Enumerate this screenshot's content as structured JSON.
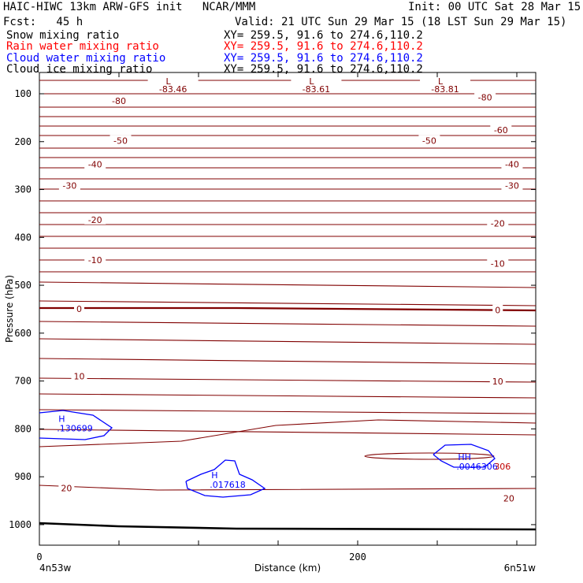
{
  "header": {
    "title": "HAIC-HIWC 13km ARW-GFS init   NCAR/MMM",
    "init": "Init: 00 UTC Sat 28 Mar 15",
    "fcst": "Fcst:   45 h",
    "valid": "Valid: 21 UTC Sun 29 Mar 15 (18 LST Sun 29 Mar 15)",
    "fields": [
      {
        "name": "Snow mixing ratio",
        "xy": "XY= 259.5, 91.6 to 274.6,110.2",
        "color": "#000000"
      },
      {
        "name": "Rain water mixing ratio",
        "xy": "XY= 259.5, 91.6 to 274.6,110.2",
        "color": "#ff0000"
      },
      {
        "name": "Cloud water mixing ratio",
        "xy": "XY= 259.5, 91.6 to 274.6,110.2",
        "color": "#0000ff"
      },
      {
        "name": "Cloud ice mixing ratio",
        "xy": "XY= 259.5, 91.6 to 274.6,110.2",
        "color": "#000000"
      }
    ]
  },
  "chart_data": {
    "type": "cross-section contour",
    "ylabel": "Pressure (hPa)",
    "xlabel": "Distance (km)",
    "y_ticks": [
      "100",
      "200",
      "300",
      "400",
      "500",
      "600",
      "700",
      "800",
      "900",
      "1000"
    ],
    "x_ticks": [
      "0",
      "200"
    ],
    "x_start_label": "4n53w",
    "x_end_label": "6n51w",
    "colors": {
      "temperature": "#800000",
      "cloud_water": "#0000ff",
      "rain": "#c00000",
      "ground": "#000000"
    },
    "isotherm_labels": [
      {
        "text": "-80",
        "x_km": 50,
        "p_hpa": 115
      },
      {
        "text": "-80",
        "x_km": 280,
        "p_hpa": 107
      },
      {
        "text": "-60",
        "x_km": 290,
        "p_hpa": 176
      },
      {
        "text": "-50",
        "x_km": 51,
        "p_hpa": 198
      },
      {
        "text": "-50",
        "x_km": 245,
        "p_hpa": 198
      },
      {
        "text": "-40",
        "x_km": 35,
        "p_hpa": 247
      },
      {
        "text": "-40",
        "x_km": 297,
        "p_hpa": 247
      },
      {
        "text": "-30",
        "x_km": 19,
        "p_hpa": 292
      },
      {
        "text": "-30",
        "x_km": 297,
        "p_hpa": 292
      },
      {
        "text": "-20",
        "x_km": 35,
        "p_hpa": 363
      },
      {
        "text": "-20",
        "x_km": 288,
        "p_hpa": 371
      },
      {
        "text": "-10",
        "x_km": 35,
        "p_hpa": 447
      },
      {
        "text": "-10",
        "x_km": 288,
        "p_hpa": 455
      },
      {
        "text": "0",
        "x_km": 25,
        "p_hpa": 549
      },
      {
        "text": "0",
        "x_km": 288,
        "p_hpa": 552
      },
      {
        "text": "10",
        "x_km": 25,
        "p_hpa": 690
      },
      {
        "text": "10",
        "x_km": 288,
        "p_hpa": 701
      },
      {
        "text": "20",
        "x_km": 17,
        "p_hpa": 924
      },
      {
        "text": "20",
        "x_km": 295,
        "p_hpa": 945
      }
    ],
    "lows": [
      {
        "mark": "L",
        "value": "-83.46",
        "x_km": 81
      },
      {
        "mark": "L",
        "value": "-83.61",
        "x_km": 171
      },
      {
        "mark": "L",
        "value": "-83.81",
        "x_km": 252
      }
    ],
    "highs": [
      {
        "mark": "H",
        "value": ".130699",
        "x_km": 15,
        "p_hpa": 800
      },
      {
        "mark": "H",
        "value": ".017618",
        "x_km": 111,
        "p_hpa": 918
      },
      {
        "mark": "HH",
        "value": ".0046306",
        "x_km": 266,
        "p_hpa": 880,
        "overlap": "306"
      }
    ]
  }
}
